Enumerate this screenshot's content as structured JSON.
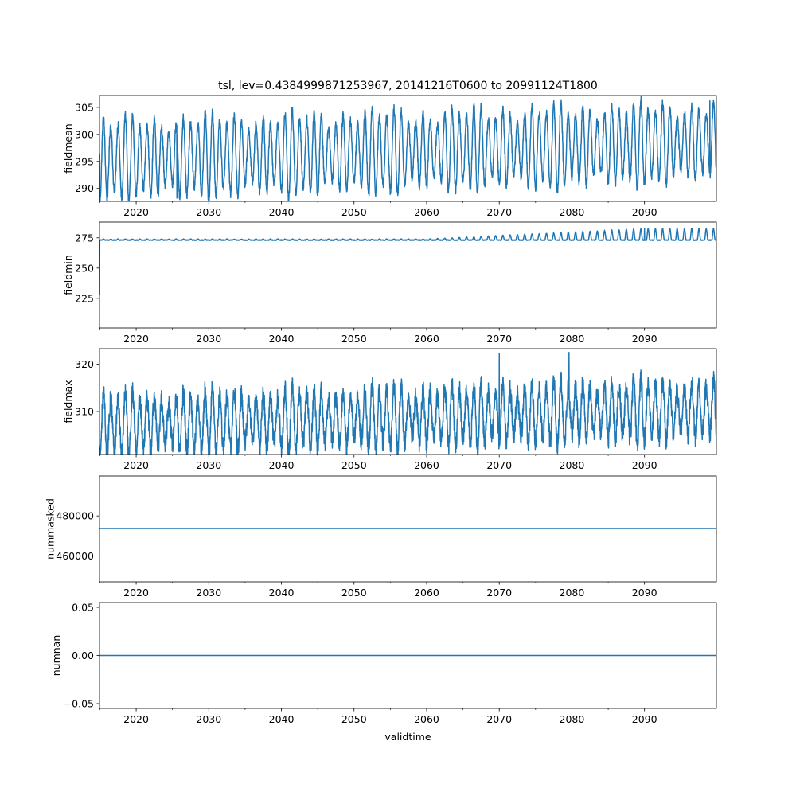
{
  "figure": {
    "title": "tsl, lev=0.4384999871253967, 20141216T0600 to 20991124T1800",
    "line_color": "#1f77b4"
  },
  "chart_data": [
    {
      "type": "line",
      "name": "fieldmean",
      "ylabel": "fieldmean",
      "xlabel": "",
      "xlim": [
        2014.95,
        2099.9
      ],
      "ylim": [
        287.6,
        307.2
      ],
      "x_ticks": [
        2020,
        2030,
        2040,
        2050,
        2060,
        2070,
        2080,
        2090
      ],
      "y_ticks": [
        290,
        295,
        300,
        305
      ],
      "series_model": {
        "kind": "seasonal-cycle",
        "x_start": 2014.96,
        "x_end": 2099.9,
        "samples_per_year": 40,
        "mean_start": 295.3,
        "mean_end": 298.5,
        "amplitude": 6.5,
        "noise": 0.9,
        "reference_points": [
          [
            2014.96,
            296.5
          ],
          [
            2025.6,
            288.2
          ],
          [
            2099.0,
            306.2
          ],
          [
            2099.9,
            299.0
          ]
        ]
      }
    },
    {
      "type": "line",
      "name": "fieldmin",
      "ylabel": "fieldmin",
      "xlabel": "",
      "xlim": [
        2014.95,
        2099.9
      ],
      "ylim": [
        200.6,
        288.0
      ],
      "x_ticks": [
        2020,
        2030,
        2040,
        2050,
        2060,
        2070,
        2080,
        2090
      ],
      "y_ticks": [
        225,
        250,
        275
      ],
      "series_model": {
        "kind": "floor-with-growing-summer-peaks",
        "x_start": 2014.96,
        "x_end": 2099.9,
        "samples_per_year": 40,
        "floor": 273.1,
        "peak_start": 0.8,
        "peak_end": 9.5,
        "growth_start_year": 2060,
        "initial_dip": [
          2014.96,
          228.0
        ],
        "reference_points": [
          [
            2014.96,
            228.0
          ],
          [
            2040.0,
            273.5
          ],
          [
            2090.0,
            282.8
          ]
        ]
      }
    },
    {
      "type": "line",
      "name": "fieldmax",
      "ylabel": "fieldmax",
      "xlabel": "",
      "xlim": [
        2014.95,
        2099.9
      ],
      "ylim": [
        300.9,
        323.3
      ],
      "x_ticks": [
        2020,
        2030,
        2040,
        2050,
        2060,
        2070,
        2080,
        2090
      ],
      "y_ticks": [
        310,
        320
      ],
      "series_model": {
        "kind": "seasonal-cycle",
        "x_start": 2014.96,
        "x_end": 2099.9,
        "samples_per_year": 40,
        "mean_start": 307.2,
        "mean_end": 310.5,
        "amplitude": 5.5,
        "noise": 2.2,
        "reference_points": [
          [
            2015.0,
            302.0
          ],
          [
            2070.0,
            322.3
          ],
          [
            2079.6,
            322.5
          ],
          [
            2099.9,
            306.5
          ]
        ]
      }
    },
    {
      "type": "line",
      "name": "nummasked",
      "ylabel": "nummasked",
      "xlabel": "",
      "xlim": [
        2014.95,
        2099.9
      ],
      "ylim": [
        447000,
        500000
      ],
      "x_ticks": [
        2020,
        2030,
        2040,
        2050,
        2060,
        2070,
        2080,
        2090
      ],
      "y_ticks": [
        460000,
        480000
      ],
      "series": [
        {
          "name": "nummasked",
          "x": [
            2014.95,
            2099.9
          ],
          "y": [
            473700,
            473700
          ]
        }
      ]
    },
    {
      "type": "line",
      "name": "numnan",
      "ylabel": "numnan",
      "xlabel": "validtime",
      "xlim": [
        2014.95,
        2099.9
      ],
      "ylim": [
        -0.055,
        0.055
      ],
      "x_ticks": [
        2020,
        2030,
        2040,
        2050,
        2060,
        2070,
        2080,
        2090
      ],
      "y_ticks": [
        -0.05,
        0.0,
        0.05
      ],
      "y_tick_labels": [
        "−0.05",
        "0.00",
        "0.05"
      ],
      "series": [
        {
          "name": "numnan",
          "x": [
            2014.95,
            2099.9
          ],
          "y": [
            0,
            0
          ]
        }
      ]
    }
  ]
}
